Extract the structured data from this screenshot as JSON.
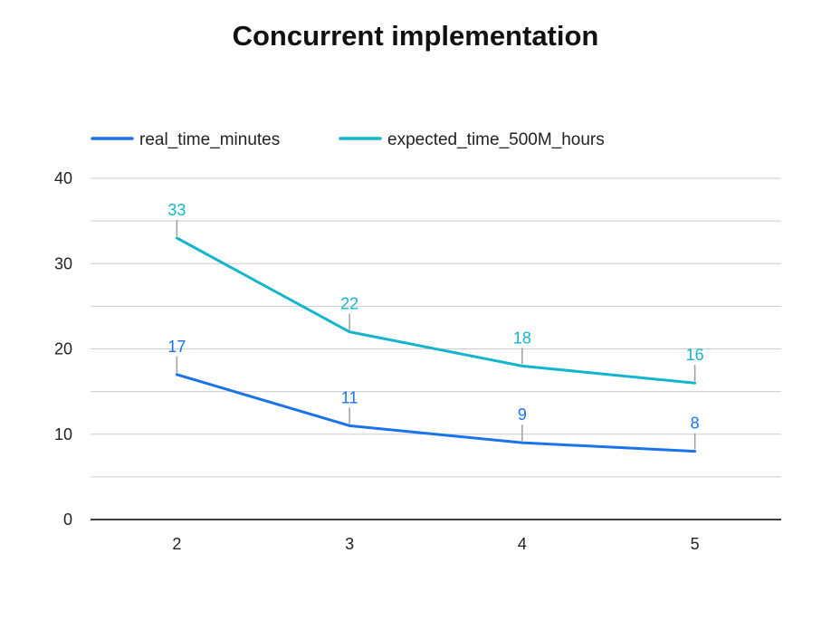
{
  "chart_data": {
    "type": "line",
    "title": "Concurrent implementation",
    "xlabel": "",
    "ylabel": "",
    "categories": [
      "2",
      "3",
      "4",
      "5"
    ],
    "ylim": [
      0,
      40
    ],
    "yticks": [
      0,
      10,
      20,
      30,
      40
    ],
    "grid": true,
    "legend_position": "top-left",
    "data_labels": true,
    "series": [
      {
        "name": "real_time_minutes",
        "values": [
          17,
          11,
          9,
          8
        ],
        "color": "#1a73e8"
      },
      {
        "name": "expected_time_500M_hours",
        "values": [
          33,
          22,
          18,
          16
        ],
        "color": "#12b5cb"
      }
    ],
    "colors": {
      "grid": "#cccccc",
      "axis": "#000000",
      "leader": "#9e9e9e"
    }
  }
}
